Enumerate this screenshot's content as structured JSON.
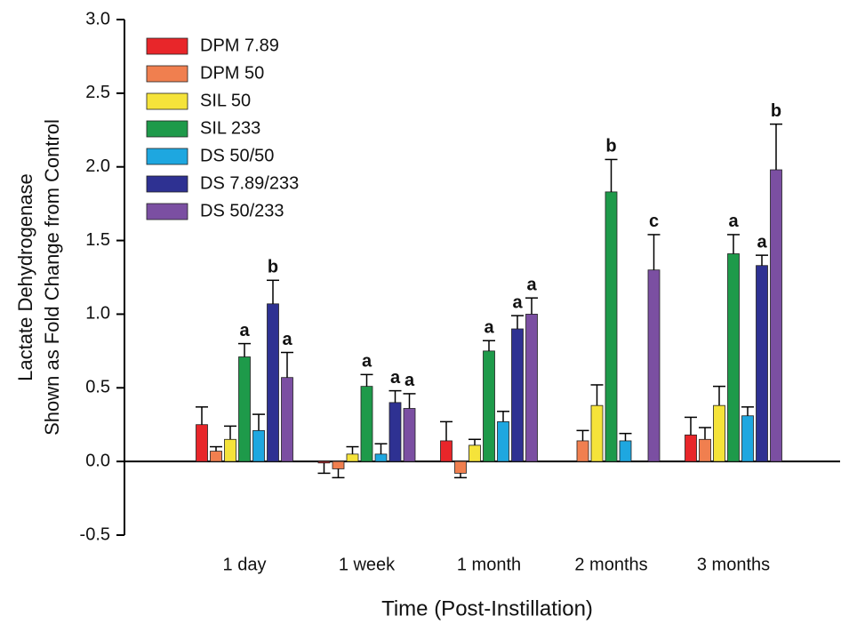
{
  "chart_data": {
    "type": "bar",
    "xlabel": "Time (Post-Instillation)",
    "ylabel": [
      "Lactate Dehydrogenase",
      "Shown as Fold Change from Control"
    ],
    "categories": [
      "1 day",
      "1 week",
      "1 month",
      "2 months",
      "3 months"
    ],
    "ylim": [
      -0.5,
      3.0
    ],
    "yticks": [
      -0.5,
      {
        "value": 0,
        "label": "0.0"
      },
      0.5,
      {
        "value": 1,
        "label": "1.0"
      },
      1.5,
      {
        "value": 2,
        "label": "2.0"
      },
      2.5,
      {
        "value": 3,
        "label": "3.0"
      }
    ],
    "legend": "top-left",
    "series": [
      {
        "name": "DPM 7.89",
        "color": "#e8262a",
        "values": [
          0.25,
          -0.01,
          0.14,
          null,
          0.18
        ],
        "errors": [
          0.12,
          0.07,
          0.13,
          null,
          0.12
        ],
        "letters": [
          null,
          null,
          null,
          null,
          null
        ]
      },
      {
        "name": "DPM 50",
        "color": "#f07f4f",
        "values": [
          0.07,
          -0.05,
          -0.08,
          0.14,
          0.15
        ],
        "errors": [
          0.03,
          0.06,
          0.03,
          0.07,
          0.08
        ],
        "letters": [
          null,
          null,
          null,
          null,
          null
        ]
      },
      {
        "name": "SIL 50",
        "color": "#f5e33a",
        "values": [
          0.15,
          0.05,
          0.11,
          0.38,
          0.38
        ],
        "errors": [
          0.09,
          0.05,
          0.04,
          0.14,
          0.13
        ],
        "letters": [
          null,
          null,
          null,
          null,
          null
        ]
      },
      {
        "name": "SIL 233",
        "color": "#1e9a4a",
        "values": [
          0.71,
          0.51,
          0.75,
          1.83,
          1.41
        ],
        "errors": [
          0.09,
          0.08,
          0.07,
          0.22,
          0.13
        ],
        "letters": [
          "a",
          "a",
          "a",
          "b",
          "a"
        ]
      },
      {
        "name": "DS 50/50",
        "color": "#1ea7e0",
        "values": [
          0.21,
          0.05,
          0.27,
          0.14,
          0.31
        ],
        "errors": [
          0.11,
          0.07,
          0.07,
          0.05,
          0.06
        ],
        "letters": [
          null,
          null,
          null,
          null,
          null
        ]
      },
      {
        "name": "DS 7.89/233",
        "color": "#2e3192",
        "values": [
          1.07,
          0.4,
          0.9,
          null,
          1.33
        ],
        "errors": [
          0.16,
          0.08,
          0.09,
          null,
          0.07
        ],
        "letters": [
          "b",
          "a",
          "a",
          null,
          "a"
        ]
      },
      {
        "name": "DS 50/233",
        "color": "#7b4fa2",
        "values": [
          0.57,
          0.36,
          1.0,
          1.3,
          1.98
        ],
        "errors": [
          0.17,
          0.1,
          0.11,
          0.24,
          0.31
        ],
        "letters": [
          "a",
          "a",
          "a",
          "c",
          "b"
        ]
      }
    ]
  }
}
